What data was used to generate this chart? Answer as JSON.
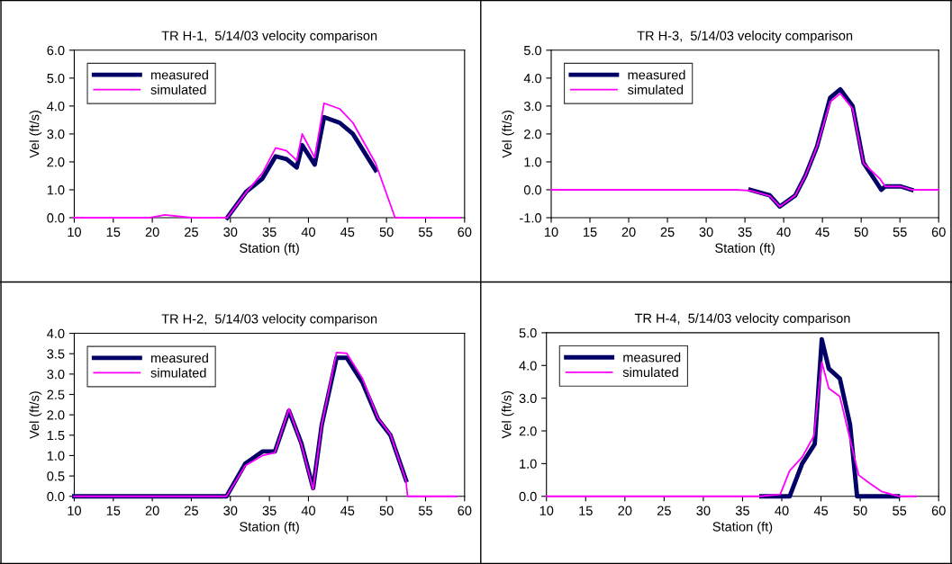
{
  "chart_data": [
    {
      "type": "line",
      "title": "TR H-1,  5/14/03 velocity comparison",
      "xlabel": "Station (ft)",
      "ylabel": "Vel (ft/s)",
      "xlim": [
        10,
        60
      ],
      "xticks": [
        10,
        15,
        20,
        25,
        30,
        35,
        40,
        45,
        50,
        55,
        60
      ],
      "ylim": [
        0,
        6
      ],
      "yticks": [
        {
          "value": 0,
          "label": "0.0"
        },
        {
          "value": 1,
          "label": "1.0"
        },
        {
          "value": 2,
          "label": "2.0"
        },
        {
          "value": 3,
          "label": "3.0"
        },
        {
          "value": 4,
          "label": "4.0"
        },
        {
          "value": 5,
          "label": "5.0"
        },
        {
          "value": 6,
          "label": "6.0"
        }
      ],
      "grid": false,
      "legend": "top left",
      "marker": "none",
      "line_style": "solid",
      "series": [
        {
          "name": "measured",
          "color": "#000066",
          "x": [
            29.6,
            32.0,
            34.1,
            35.8,
            37.2,
            38.5,
            39.2,
            40.8,
            42.0,
            44.0,
            45.7,
            48.6
          ],
          "values": [
            0,
            0.92,
            1.4,
            2.2,
            2.1,
            1.8,
            2.6,
            1.9,
            3.6,
            3.4,
            3.0,
            1.7
          ]
        },
        {
          "name": "simulated",
          "color": "#ff00ff",
          "x": [
            10,
            19.6,
            21.6,
            25.0,
            29.6,
            32.0,
            34.1,
            35.8,
            37.2,
            38.5,
            39.2,
            40.8,
            42.0,
            44.0,
            45.7,
            48.6,
            51.1,
            59.5
          ],
          "values": [
            0,
            0,
            0.1,
            0,
            0,
            0.9,
            1.6,
            2.5,
            2.4,
            2.05,
            3.0,
            2.15,
            4.1,
            3.9,
            3.4,
            1.95,
            0,
            0
          ]
        }
      ]
    },
    {
      "type": "line",
      "title": "TR H-3,  5/14/03 velocity comparison",
      "xlabel": "Station (ft)",
      "ylabel": "Vel (ft/s)",
      "xlim": [
        10,
        60
      ],
      "xticks": [
        10,
        15,
        20,
        25,
        30,
        35,
        40,
        45,
        50,
        55,
        60
      ],
      "ylim": [
        -1,
        5
      ],
      "yticks": [
        {
          "value": -1,
          "label": "-1.0"
        },
        {
          "value": 0,
          "label": "0.0"
        },
        {
          "value": 1,
          "label": "1.0"
        },
        {
          "value": 2,
          "label": "2.0"
        },
        {
          "value": 3,
          "label": "3.0"
        },
        {
          "value": 4,
          "label": "4.0"
        },
        {
          "value": 5,
          "label": "5.0"
        }
      ],
      "grid": false,
      "legend": "top left",
      "marker": "none",
      "line_style": "solid",
      "series": [
        {
          "name": "measured",
          "color": "#000066",
          "x": [
            35.7,
            38.2,
            39.5,
            41.5,
            42.8,
            44.3,
            46.0,
            47.3,
            48.9,
            50.3,
            52.6,
            53.1,
            55.1,
            56.5
          ],
          "values": [
            0,
            -0.2,
            -0.6,
            -0.2,
            0.5,
            1.55,
            3.3,
            3.6,
            3.0,
            0.97,
            0,
            0.12,
            0.12,
            0
          ]
        },
        {
          "name": "simulated",
          "color": "#ff00ff",
          "x": [
            10,
            33.8,
            35.7,
            38.2,
            39.5,
            41.5,
            42.8,
            44.3,
            46.0,
            47.3,
            48.9,
            50.3,
            52.4,
            53.1,
            55.1,
            56.5,
            60
          ],
          "values": [
            0,
            0,
            -0.03,
            -0.22,
            -0.6,
            -0.2,
            0.5,
            1.55,
            3.15,
            3.45,
            2.9,
            0.95,
            0.4,
            0.12,
            0.12,
            0,
            0
          ]
        }
      ]
    },
    {
      "type": "line",
      "title": "TR H-2,  5/14/03 velocity comparison",
      "xlabel": "Station (ft)",
      "ylabel": "Vel (ft/s)",
      "xlim": [
        10,
        60
      ],
      "xticks": [
        10,
        15,
        20,
        25,
        30,
        35,
        40,
        45,
        50,
        55,
        60
      ],
      "ylim": [
        0,
        4
      ],
      "yticks": [
        {
          "value": 0,
          "label": "0.0"
        },
        {
          "value": 0.5,
          "label": "0.5"
        },
        {
          "value": 1,
          "label": "1.0"
        },
        {
          "value": 1.5,
          "label": "1.5"
        },
        {
          "value": 2,
          "label": "2.0"
        },
        {
          "value": 2.5,
          "label": "2.5"
        },
        {
          "value": 3,
          "label": "3.0"
        },
        {
          "value": 3.5,
          "label": "3.5"
        },
        {
          "value": 4,
          "label": "4.0"
        }
      ],
      "grid": false,
      "legend": "top left",
      "marker": "none",
      "line_style": "solid",
      "series": [
        {
          "name": "measured",
          "color": "#000066",
          "x": [
            10,
            29.5,
            31.9,
            34.1,
            35.7,
            37.5,
            39.1,
            40.6,
            41.7,
            43.6,
            44.9,
            46.9,
            48.9,
            50.5,
            52.5
          ],
          "values": [
            0,
            0,
            0.8,
            1.1,
            1.1,
            2.1,
            1.3,
            0.2,
            1.75,
            3.4,
            3.4,
            2.8,
            1.9,
            1.5,
            0.4
          ]
        },
        {
          "name": "simulated",
          "color": "#ff00ff",
          "x": [
            10,
            29.5,
            31.9,
            34.1,
            35.7,
            37.5,
            39.1,
            40.6,
            41.7,
            43.6,
            44.9,
            46.9,
            48.9,
            50.5,
            52.5,
            52.7,
            59.0
          ],
          "values": [
            0,
            0,
            0.75,
            1.0,
            1.07,
            2.15,
            1.27,
            0.17,
            1.75,
            3.53,
            3.51,
            2.9,
            1.92,
            1.52,
            0.38,
            0,
            0
          ]
        }
      ]
    },
    {
      "type": "line",
      "title": "TR H-4,  5/14/03 velocity comparison",
      "xlabel": "Station (ft)",
      "ylabel": "Vel (ft/s)",
      "xlim": [
        10,
        60
      ],
      "xticks": [
        10,
        15,
        20,
        25,
        30,
        35,
        40,
        45,
        50,
        55,
        60
      ],
      "ylim": [
        0,
        5
      ],
      "yticks": [
        {
          "value": 0,
          "label": "0.0"
        },
        {
          "value": 1,
          "label": "1.0"
        },
        {
          "value": 2,
          "label": "2.0"
        },
        {
          "value": 3,
          "label": "3.0"
        },
        {
          "value": 4,
          "label": "4.0"
        },
        {
          "value": 5,
          "label": "5.0"
        }
      ],
      "grid": false,
      "legend": "top left",
      "marker": "none",
      "line_style": "solid",
      "series": [
        {
          "name": "measured",
          "color": "#000066",
          "x": [
            37.4,
            41.0,
            42.6,
            44.2,
            45.1,
            46.0,
            47.4,
            48.7,
            49.6,
            54.8
          ],
          "values": [
            0,
            0,
            1.0,
            1.6,
            4.8,
            3.9,
            3.6,
            2.2,
            0,
            0
          ]
        },
        {
          "name": "simulated",
          "color": "#ff00ff",
          "x": [
            10,
            37.2,
            39.8,
            41.0,
            42.6,
            44.1,
            45.1,
            46.0,
            47.4,
            48.6,
            49.8,
            51.2,
            52.7,
            55.0,
            57.1
          ],
          "values": [
            0,
            0,
            0.06,
            0.78,
            1.2,
            1.85,
            4.1,
            3.3,
            3.05,
            1.85,
            0.65,
            0.4,
            0.15,
            0,
            0
          ]
        }
      ]
    }
  ]
}
